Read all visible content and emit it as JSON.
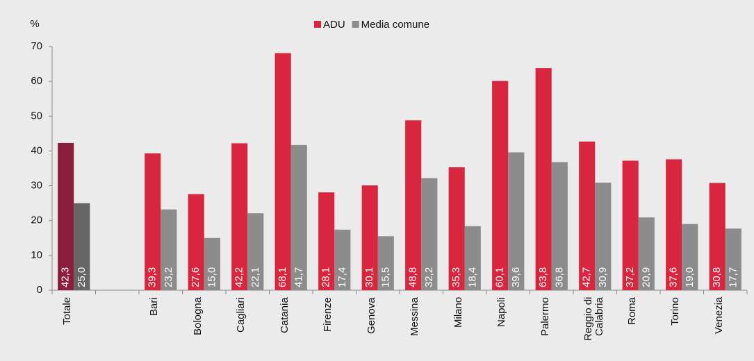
{
  "chart_data": {
    "type": "bar",
    "y_label": "%",
    "categories": [
      "Totale",
      null,
      "Bari",
      "Bologna",
      "Cagliari",
      "Catania",
      "Firenze",
      "Genova",
      "Messina",
      "Milano",
      "Napoli",
      "Palermo",
      "Reggio di Calabria",
      "Roma",
      "Torino",
      "Venezia"
    ],
    "series": [
      {
        "name": "ADU",
        "color": "#d7263d",
        "colors": [
          "#8b1e3f",
          null,
          "#d7263d",
          "#d7263d",
          "#d7263d",
          "#d7263d",
          "#d7263d",
          "#d7263d",
          "#d7263d",
          "#d7263d",
          "#d7263d",
          "#d7263d",
          "#d7263d",
          "#d7263d",
          "#d7263d",
          "#d7263d"
        ],
        "values": [
          42.3,
          null,
          39.3,
          27.6,
          42.2,
          68.1,
          28.1,
          30.1,
          48.8,
          35.3,
          60.1,
          63.8,
          42.7,
          37.2,
          37.6,
          30.8
        ],
        "value_labels": [
          "42,3",
          null,
          "39,3",
          "27,6",
          "42,2",
          "68,1",
          "28,1",
          "30,1",
          "48,8",
          "35,3",
          "60,1",
          "63,8",
          "42,7",
          "37,2",
          "37,6",
          "30,8"
        ]
      },
      {
        "name": "Media comune",
        "color": "#8c8c8c",
        "colors": [
          "#666666",
          null,
          "#8c8c8c",
          "#8c8c8c",
          "#8c8c8c",
          "#8c8c8c",
          "#8c8c8c",
          "#8c8c8c",
          "#8c8c8c",
          "#8c8c8c",
          "#8c8c8c",
          "#8c8c8c",
          "#8c8c8c",
          "#8c8c8c",
          "#8c8c8c",
          "#8c8c8c"
        ],
        "values": [
          25.0,
          null,
          23.2,
          15.0,
          22.1,
          41.7,
          17.4,
          15.5,
          32.2,
          18.4,
          39.6,
          36.8,
          30.9,
          20.9,
          19.0,
          17.7
        ],
        "value_labels": [
          "25,0",
          null,
          "23,2",
          "15,0",
          "22,1",
          "41,7",
          "17,4",
          "15,5",
          "32,2",
          "18,4",
          "39,6",
          "36,8",
          "30,9",
          "20,9",
          "19,0",
          "17,7"
        ]
      }
    ],
    "ylim": [
      0,
      70
    ],
    "yticks": [
      0,
      10,
      20,
      30,
      40,
      50,
      60,
      70
    ],
    "grid": false
  }
}
